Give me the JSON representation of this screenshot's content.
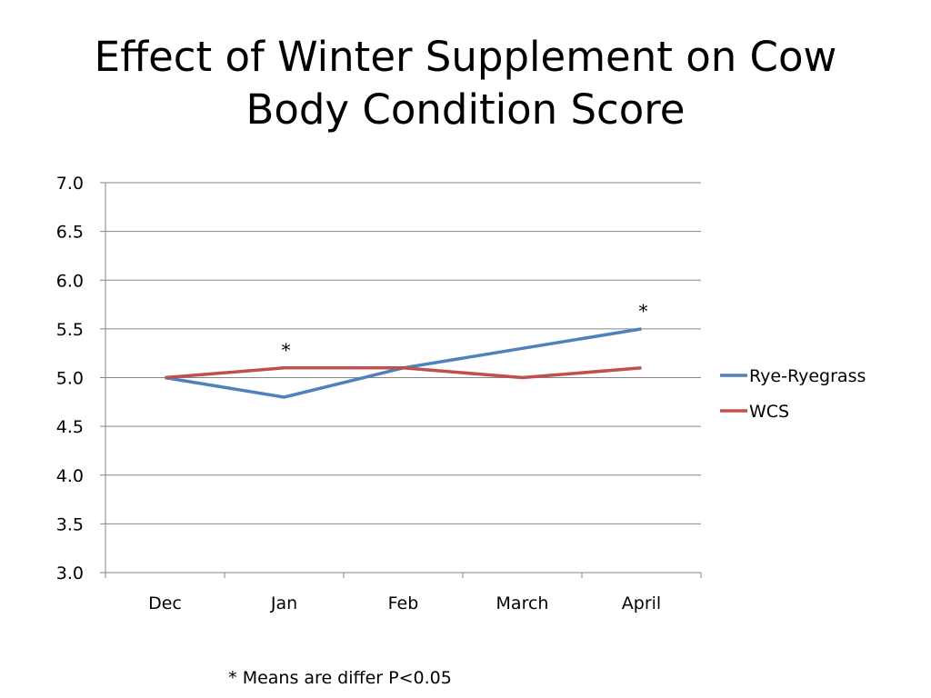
{
  "slide": {
    "title": "Effect of Winter Supplement on Cow Body Condition Score",
    "footnote": "* Means are differ P<0.05"
  },
  "chart_data": {
    "type": "line",
    "title": "",
    "xlabel": "",
    "ylabel": "",
    "categories": [
      "Dec",
      "Jan",
      "Feb",
      "March",
      "April"
    ],
    "ylim": [
      3.0,
      7.0
    ],
    "yticks": [
      "3.0",
      "3.5",
      "4.0",
      "4.5",
      "5.0",
      "5.5",
      "6.0",
      "6.5",
      "7.0"
    ],
    "grid": true,
    "legend": "right",
    "series": [
      {
        "name": "Rye-Ryegrass",
        "color": "#4F81BD",
        "values": [
          5.0,
          4.8,
          5.1,
          5.3,
          5.5
        ]
      },
      {
        "name": "WCS",
        "color": "#C0504D",
        "values": [
          5.0,
          5.1,
          5.1,
          5.0,
          5.1
        ]
      }
    ],
    "annotations": [
      {
        "text": "*",
        "category": "Jan",
        "y": 5.35
      },
      {
        "text": "*",
        "category": "April",
        "y": 5.75
      }
    ]
  }
}
